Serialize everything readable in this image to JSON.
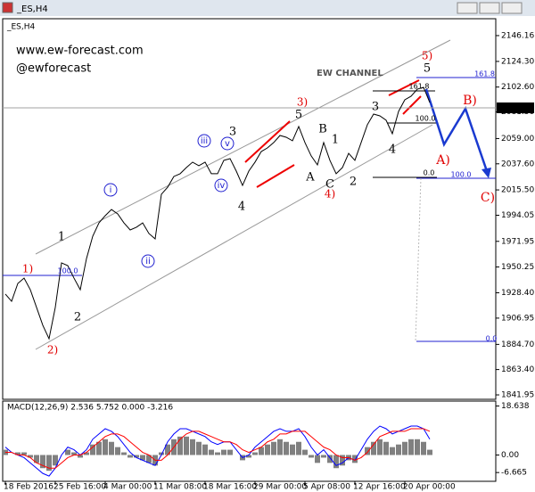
{
  "chart_data": [
    {
      "type": "line",
      "window_title": "_ES,H4",
      "title": "_ES,H4",
      "categories": [
        "18 Feb 2016",
        null,
        null,
        null,
        null,
        null,
        null,
        null,
        "25 Feb 16:00",
        null,
        null,
        null,
        null,
        null,
        null,
        null,
        "4 Mar 00:00",
        null,
        null,
        null,
        null,
        null,
        null,
        null,
        "11 Mar 08:00",
        null,
        null,
        null,
        null,
        null,
        null,
        null,
        "18 Mar 16:00",
        null,
        null,
        null,
        null,
        null,
        null,
        null,
        "29 Mar 00:00",
        null,
        null,
        null,
        null,
        null,
        null,
        null,
        "5 Apr 08:00",
        null,
        null,
        null,
        null,
        null,
        null,
        null,
        "12 Apr 16:00",
        null,
        null,
        null,
        null,
        null,
        null,
        null,
        "20 Apr 00:00",
        null,
        null,
        null,
        null
      ],
      "series": [
        {
          "color": "#000000",
          "values": [
            1927.3,
            1921.2,
            1936.3,
            1940.8,
            1931.0,
            1916.0,
            1900.9,
            1889.5,
            1916.0,
            1953.7,
            1951.4,
            1940.8,
            1931.0,
            1957.4,
            1976.3,
            1987.6,
            1993.7,
            1998.9,
            1995.2,
            1987.6,
            1981.6,
            1983.9,
            1987.6,
            1978.6,
            1974.0,
            2011.8,
            2017.8,
            2026.9,
            2029.2,
            2034.4,
            2039.0,
            2036.0,
            2039.0,
            2029.2,
            2029.2,
            2040.5,
            2042.0,
            2031.4,
            2019.3,
            2031.4,
            2039.0,
            2048.0,
            2051.1,
            2055.6,
            2061.6,
            2060.1,
            2057.1,
            2069.2,
            2055.6,
            2044.3,
            2036.7,
            2055.6,
            2040.5,
            2029.2,
            2034.4,
            2046.5,
            2040.5,
            2055.6,
            2070.7,
            2079.7,
            2078.2,
            2074.5,
            2063.1,
            2082.0,
            2091.8,
            2094.8,
            2100.8,
            2102.4,
            2089.5
          ]
        }
      ],
      "ylim": [
        1838.2,
        2159.7
      ],
      "yticks": [
        2146.16,
        {
          "value": 2124.3,
          "label": "2124.30"
        },
        {
          "value": 2102.6,
          "label": "2102.60"
        },
        {
          "value": 2081.5,
          "label": "2081.50"
        },
        {
          "value": 2059,
          "label": "2059.00"
        },
        {
          "value": 2037.6,
          "label": "2037.60"
        },
        {
          "value": 2015.5,
          "label": "2015.50"
        },
        1994.05,
        1971.95,
        1950.25,
        {
          "value": 1928.4,
          "label": "1928.40"
        },
        1906.95,
        {
          "value": 1884.7,
          "label": "1884.70"
        },
        {
          "value": 1863.4,
          "label": "1863.40"
        },
        1841.95
      ],
      "last_price": {
        "value": 2085,
        "label": "2085.00"
      },
      "annotations": [
        {
          "text": "www.ew-forecast.com",
          "color": "#000000"
        },
        {
          "text": "@ewforecast",
          "color": "#000000"
        },
        {
          "text": "EW CHANNEL",
          "color": "#555555"
        },
        {
          "text": "1)",
          "color": "#e00000"
        },
        {
          "text": "2)",
          "color": "#e00000"
        },
        {
          "text": "1",
          "color": "#000000"
        },
        {
          "text": "2",
          "color": "#000000"
        },
        {
          "text": "i",
          "color": "#2020d0",
          "circled": true
        },
        {
          "text": "ii",
          "color": "#2020d0",
          "circled": true
        },
        {
          "text": "iii",
          "color": "#2020d0",
          "circled": true
        },
        {
          "text": "iv",
          "color": "#2020d0",
          "circled": true
        },
        {
          "text": "v",
          "color": "#2020d0",
          "circled": true
        },
        {
          "text": "3",
          "color": "#000000"
        },
        {
          "text": "4",
          "color": "#000000"
        },
        {
          "text": "3)",
          "color": "#e00000"
        },
        {
          "text": "5",
          "color": "#000000"
        },
        {
          "text": "B",
          "color": "#000000"
        },
        {
          "text": "1",
          "color": "#000000"
        },
        {
          "text": "A",
          "color": "#000000"
        },
        {
          "text": "C",
          "color": "#000000"
        },
        {
          "text": "4)",
          "color": "#e00000"
        },
        {
          "text": "2",
          "color": "#000000"
        },
        {
          "text": "3",
          "color": "#000000"
        },
        {
          "text": "4",
          "color": "#000000"
        },
        {
          "text": "5)",
          "color": "#e00000"
        },
        {
          "text": "5",
          "color": "#000000"
        },
        {
          "text": "A)",
          "color": "#e00000"
        },
        {
          "text": "B)",
          "color": "#e00000"
        },
        {
          "text": "C)",
          "color": "#e00000"
        },
        {
          "text": "161.8",
          "color": "#2020d0"
        },
        {
          "text": "161.8",
          "color": "#000000"
        },
        {
          "text": "100.0",
          "color": "#000000"
        },
        {
          "text": "0.0",
          "color": "#000000"
        },
        {
          "text": "100.0",
          "color": "#2020d0"
        },
        {
          "text": "0.0",
          "color": "#2020d0"
        },
        {
          "text": "100.0",
          "color": "#2020d0"
        }
      ]
    },
    {
      "type": "macd",
      "title": "MACD(12,26,9) 2.536 5.752 0.000 -3.216",
      "ylim": [
        -10,
        20.5
      ],
      "yticks": [
        18.638,
        {
          "value": 0,
          "label": "0.00"
        },
        -6.665
      ],
      "series": [
        {
          "style": "bar",
          "color": "#808080",
          "values": [
            2,
            0,
            1,
            1,
            -1,
            -3,
            -5,
            -6,
            -4,
            0,
            2,
            1,
            -1,
            1,
            4,
            5,
            6,
            5,
            3,
            1,
            -1,
            -1,
            -2,
            -3,
            -4,
            1,
            4,
            6,
            7,
            7,
            6,
            5,
            4,
            2,
            1,
            2,
            2,
            0,
            -2,
            -1,
            1,
            3,
            4,
            5,
            6,
            5,
            4,
            5,
            2,
            -1,
            -3,
            -1,
            -3,
            -5,
            -4,
            -2,
            -3,
            0,
            3,
            5,
            6,
            5,
            3,
            4,
            5,
            6,
            6,
            5,
            2
          ]
        },
        {
          "style": "line",
          "color": "#0000ff",
          "values": [
            3,
            1,
            0,
            -1,
            -3,
            -5,
            -7,
            -8,
            -5,
            0,
            3,
            2,
            0,
            2,
            6,
            8,
            10,
            9,
            7,
            4,
            1,
            -1,
            -2,
            -3,
            -4,
            0,
            5,
            8,
            10,
            10,
            9,
            8,
            7,
            5,
            4,
            5,
            5,
            2,
            -1,
            0,
            3,
            5,
            7,
            9,
            10,
            9,
            9,
            10,
            7,
            3,
            0,
            2,
            -1,
            -4,
            -3,
            -1,
            -2,
            2,
            6,
            9,
            11,
            10,
            8,
            9,
            10,
            11,
            11,
            10,
            6
          ]
        },
        {
          "style": "line",
          "color": "#ff0000",
          "values": [
            1,
            1,
            0,
            0,
            -1,
            -3,
            -4,
            -5,
            -5,
            -3,
            -1,
            0,
            0,
            1,
            3,
            5,
            7,
            8,
            8,
            7,
            5,
            3,
            1,
            0,
            -2,
            -2,
            0,
            3,
            6,
            8,
            9,
            9,
            8,
            7,
            6,
            5,
            5,
            4,
            2,
            1,
            2,
            3,
            5,
            6,
            8,
            8,
            9,
            9,
            9,
            7,
            5,
            3,
            2,
            0,
            -1,
            -1,
            -2,
            -1,
            1,
            4,
            7,
            8,
            9,
            9,
            9,
            10,
            10,
            10,
            9
          ]
        }
      ]
    }
  ]
}
